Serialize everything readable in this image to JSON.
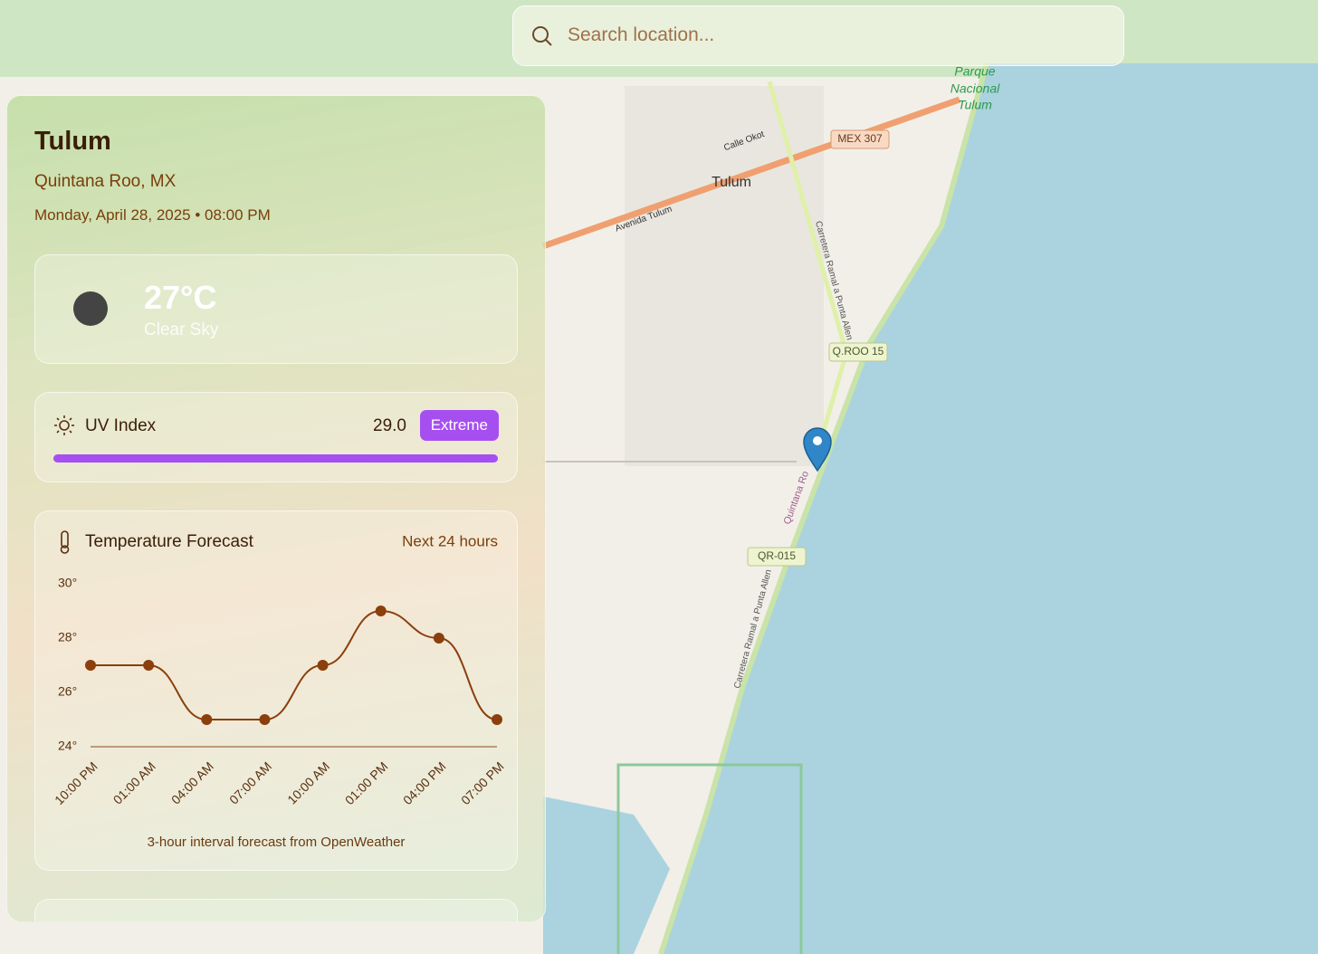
{
  "search": {
    "placeholder": "Search location..."
  },
  "location": {
    "city": "Tulum",
    "region": "Quintana Roo, MX",
    "datetime": "Monday, April 28, 2025 • 08:00 PM"
  },
  "current": {
    "temperature": "27°C",
    "condition": "Clear Sky"
  },
  "uv": {
    "label": "UV Index",
    "value": "29.0",
    "level": "Extreme"
  },
  "chart_data": {
    "type": "line",
    "title": "Temperature Forecast",
    "subtitle": "Next 24 hours",
    "caption": "3-hour interval forecast from OpenWeather",
    "categories": [
      "10:00 PM",
      "01:00 AM",
      "04:00 AM",
      "07:00 AM",
      "10:00 AM",
      "01:00 PM",
      "04:00 PM",
      "07:00 PM"
    ],
    "values": [
      27,
      27,
      25,
      25,
      27,
      29,
      28,
      25
    ],
    "color": "#8a3f0c",
    "ylim": [
      24,
      30
    ],
    "yticks": [
      {
        "value": 24,
        "label": "24°"
      },
      {
        "value": 26,
        "label": "26°"
      },
      {
        "value": 28,
        "label": "28°"
      },
      {
        "value": 30,
        "label": "30°"
      }
    ]
  },
  "map": {
    "labels": [
      "Parque",
      "Nacional",
      "Tulum",
      "MEX 307",
      "Tulum",
      "Calle Okot",
      "Avenida Tulum",
      "Carretera Ramal a Punta Allen",
      "Q.ROO 15",
      "Quintana Ro",
      "QR-015",
      "Carretera Ramal a Punta Allen"
    ]
  }
}
